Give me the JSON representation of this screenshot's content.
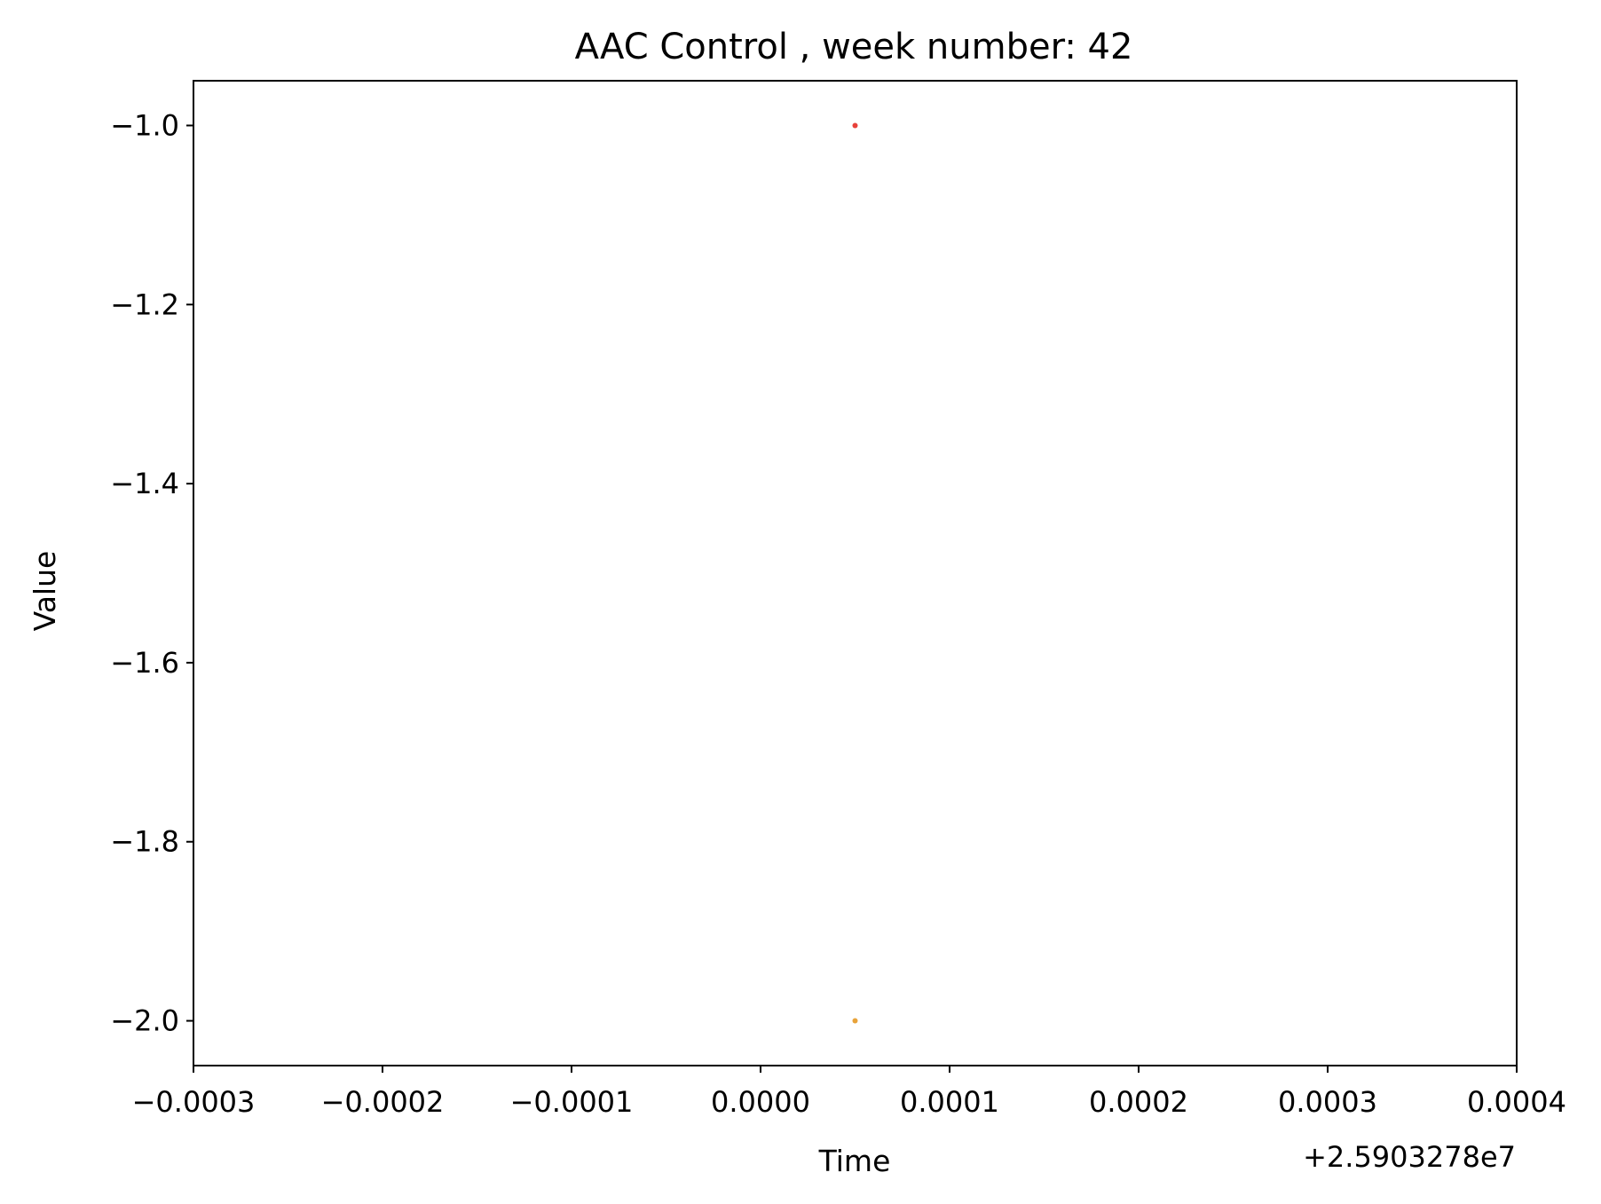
{
  "chart_data": {
    "type": "scatter",
    "title": "AAC Control , week number: 42",
    "xlabel": "Time",
    "ylabel": "Value",
    "x_offset_label": "+2.5903278e7",
    "xlim": [
      -0.0003,
      0.0004
    ],
    "ylim": [
      -2.05,
      -0.95
    ],
    "x_ticks": [
      -0.0003,
      -0.0002,
      -0.0001,
      0.0,
      0.0001,
      0.0002,
      0.0003,
      0.0004
    ],
    "x_tick_labels": [
      "−0.0003",
      "−0.0002",
      "−0.0001",
      "0.0000",
      "0.0001",
      "0.0002",
      "0.0003",
      "0.0004"
    ],
    "y_ticks": [
      -1.0,
      -1.2,
      -1.4,
      -1.6,
      -1.8,
      -2.0
    ],
    "y_tick_labels": [
      "−1.0",
      "−1.2",
      "−1.4",
      "−1.6",
      "−1.8",
      "−2.0"
    ],
    "grid": false,
    "series": [
      {
        "color": "#e8413a",
        "points": [
          [
            5e-05,
            -1.0
          ]
        ]
      },
      {
        "color": "#e8a33a",
        "points": [
          [
            5e-05,
            -2.0
          ]
        ]
      }
    ]
  }
}
